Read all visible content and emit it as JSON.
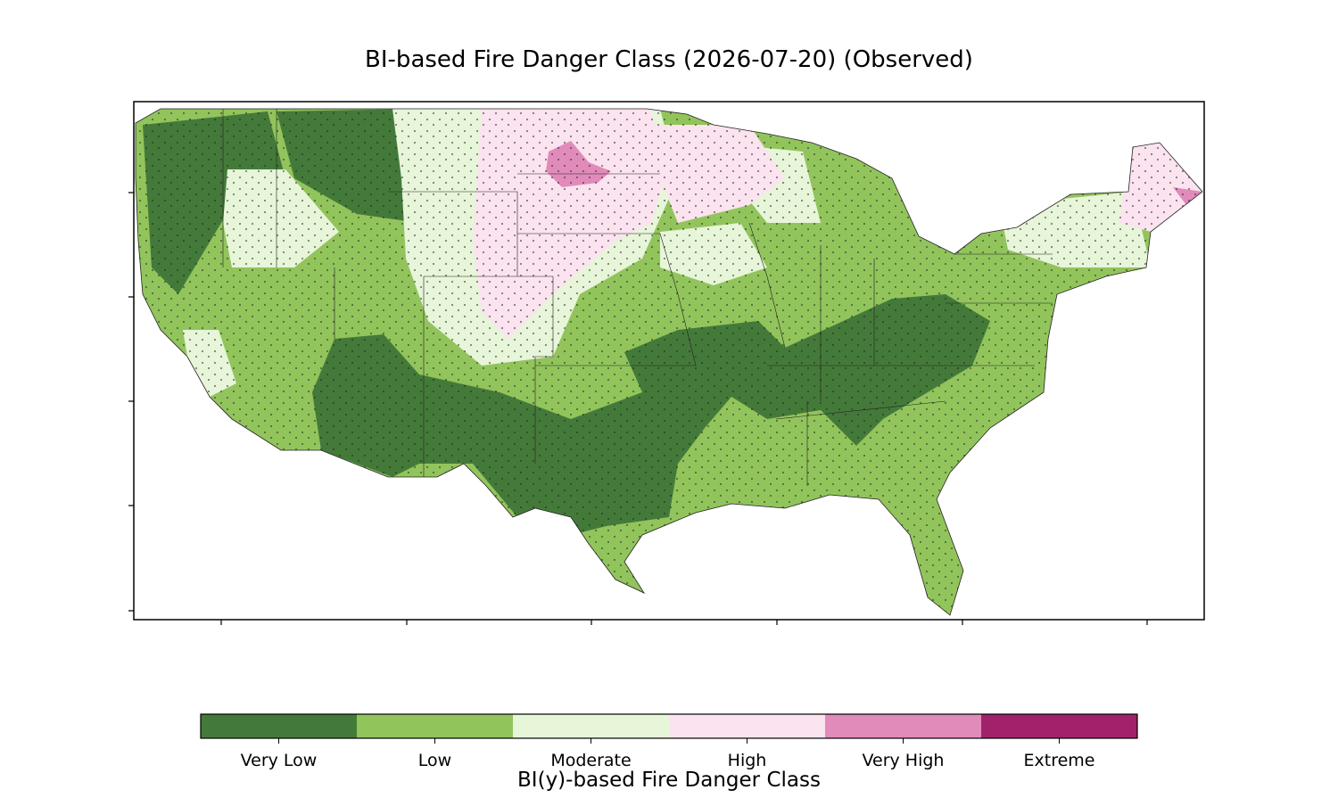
{
  "title": "BI-based Fire Danger Class (2026-07-20) (Observed)",
  "colorbar": {
    "label": "BI(y)-based Fire Danger Class",
    "classes": [
      {
        "name": "Very Low",
        "color": "#447a39"
      },
      {
        "name": "Low",
        "color": "#92c45c"
      },
      {
        "name": "Moderate",
        "color": "#e7f5d9"
      },
      {
        "name": "High",
        "color": "#fbe3ef"
      },
      {
        "name": "Very High",
        "color": "#e18bba"
      },
      {
        "name": "Extreme",
        "color": "#a1226a"
      }
    ]
  }
}
